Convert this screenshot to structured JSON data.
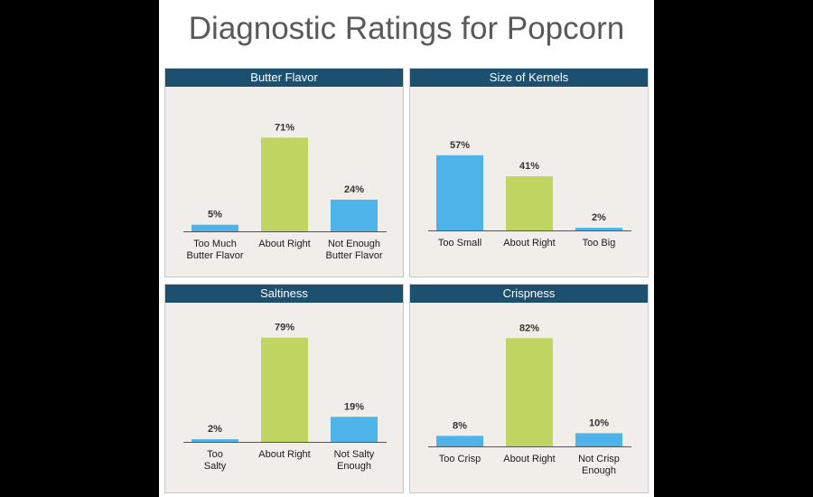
{
  "page": {
    "title": "Diagnostic Ratings for Popcorn"
  },
  "colors": {
    "header_bg": "#1d4f6e",
    "bar_blue": "#4eb3e8",
    "bar_green": "#bfd461",
    "panel_bg": "#f1eeea"
  },
  "chart_data": [
    {
      "type": "bar",
      "title": "Butter Flavor",
      "categories": [
        "Too Much\nButter Flavor",
        "About Right",
        "Not Enough\nButter Flavor"
      ],
      "values": [
        5,
        71,
        24
      ],
      "labels": [
        "5%",
        "71%",
        "24%"
      ],
      "bar_colors": [
        "blue",
        "green",
        "blue"
      ],
      "ylim": [
        0,
        100
      ],
      "xlabel": "",
      "ylabel": ""
    },
    {
      "type": "bar",
      "title": "Size of Kernels",
      "categories": [
        "Too Small",
        "About Right",
        "Too Big"
      ],
      "values": [
        57,
        41,
        2
      ],
      "labels": [
        "57%",
        "41%",
        "2%"
      ],
      "bar_colors": [
        "blue",
        "green",
        "blue"
      ],
      "ylim": [
        0,
        100
      ],
      "xlabel": "",
      "ylabel": ""
    },
    {
      "type": "bar",
      "title": "Saltiness",
      "categories": [
        "Too\nSalty",
        "About Right",
        "Not Salty\nEnough"
      ],
      "values": [
        2,
        79,
        19
      ],
      "labels": [
        "2%",
        "79%",
        "19%"
      ],
      "bar_colors": [
        "blue",
        "green",
        "blue"
      ],
      "ylim": [
        0,
        100
      ],
      "xlabel": "",
      "ylabel": ""
    },
    {
      "type": "bar",
      "title": "Crispness",
      "categories": [
        "Too Crisp",
        "About Right",
        "Not Crisp\nEnough"
      ],
      "values": [
        8,
        82,
        10
      ],
      "labels": [
        "8%",
        "82%",
        "10%"
      ],
      "bar_colors": [
        "blue",
        "green",
        "blue"
      ],
      "ylim": [
        0,
        100
      ],
      "xlabel": "",
      "ylabel": ""
    }
  ]
}
